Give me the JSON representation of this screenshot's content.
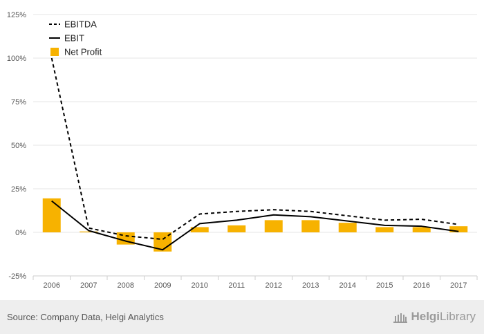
{
  "chart_data": {
    "type": "bar+line",
    "categories": [
      "2006",
      "2007",
      "2008",
      "2009",
      "2010",
      "2011",
      "2012",
      "2013",
      "2014",
      "2015",
      "2016",
      "2017"
    ],
    "series": [
      {
        "name": "EBITDA",
        "kind": "line",
        "style": "dashed",
        "values": [
          100,
          2.5,
          -2,
          -4,
          10.5,
          12,
          13,
          12,
          9.5,
          7,
          7.5,
          4.5
        ]
      },
      {
        "name": "EBIT",
        "kind": "line",
        "style": "solid",
        "values": [
          18,
          1,
          -5,
          -10,
          5,
          7,
          10,
          9,
          6.5,
          4,
          3.5,
          0.5
        ]
      },
      {
        "name": "Net Profit",
        "kind": "bar",
        "values": [
          19.5,
          0.5,
          -7,
          -11,
          3,
          4,
          7,
          7,
          5.5,
          3,
          3,
          3.5
        ]
      }
    ],
    "y_ticks": [
      -25,
      0,
      25,
      50,
      75,
      100,
      125
    ],
    "y_tick_labels": [
      "-25%",
      "0%",
      "25%",
      "50%",
      "75%",
      "100%",
      "125%"
    ],
    "ylim": [
      -25,
      125
    ],
    "grid": true,
    "legend_position": "top-left",
    "colors": {
      "bar": "#f7b200",
      "line": "#000000",
      "grid": "#e6e6e6"
    }
  },
  "footer": {
    "source": "Source: Company Data, Helgi Analytics",
    "logo_prefix": "Helgi",
    "logo_suffix": "Library",
    "logo_icon": "library-building-icon"
  }
}
